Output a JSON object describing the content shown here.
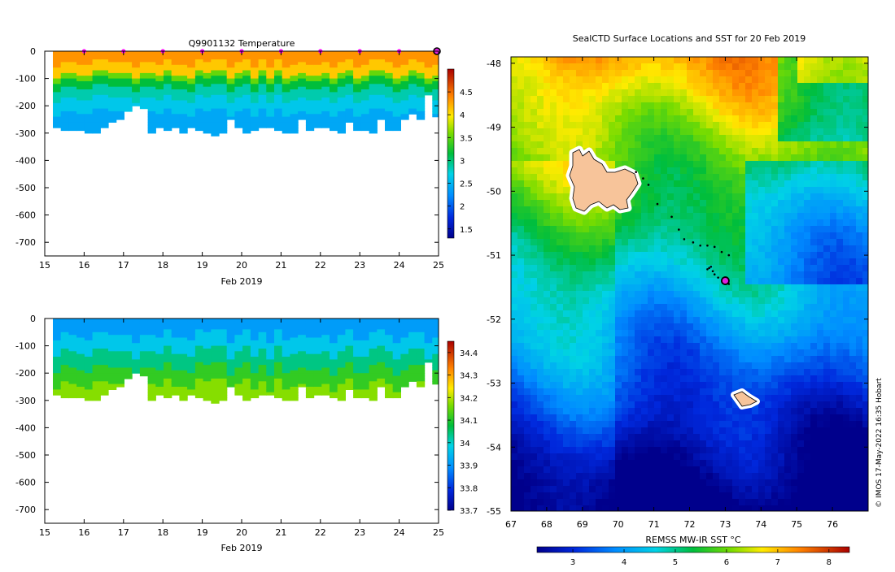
{
  "chart_data": [
    {
      "type": "heatmap",
      "title": "Q9901132  Temperature",
      "xlabel": "Feb 2019",
      "ylabel": "",
      "x_ticks": [
        15,
        16,
        17,
        18,
        19,
        20,
        21,
        22,
        23,
        24,
        25
      ],
      "y_ticks": [
        0,
        -100,
        -200,
        -300,
        -400,
        -500,
        -600,
        -700
      ],
      "xlim": [
        15,
        25
      ],
      "ylim": [
        -750,
        0
      ],
      "colorbar": {
        "ticks": [
          1.5,
          2,
          2.5,
          3,
          3.5,
          4,
          4.5
        ],
        "range": [
          1.3,
          5.0
        ]
      },
      "profile_max_depth": [
        280,
        285,
        290,
        290,
        295,
        300,
        275,
        260,
        245,
        220,
        200,
        210,
        300,
        280,
        285,
        280,
        295,
        275,
        285,
        300,
        310,
        300,
        250,
        280,
        300,
        285,
        280,
        280,
        290,
        300,
        295,
        250,
        285,
        275,
        280,
        285,
        295,
        260,
        285,
        285,
        300,
        250,
        290,
        285,
        250,
        230,
        245,
        155,
        240
      ],
      "markers": [
        16,
        17,
        18,
        19,
        20,
        21,
        22,
        23,
        24,
        25
      ]
    },
    {
      "type": "heatmap",
      "title": "",
      "xlabel": "Feb 2019",
      "ylabel": "",
      "x_ticks": [
        15,
        16,
        17,
        18,
        19,
        20,
        21,
        22,
        23,
        24,
        25
      ],
      "y_ticks": [
        0,
        -100,
        -200,
        -300,
        -400,
        -500,
        -600,
        -700
      ],
      "xlim": [
        15,
        25
      ],
      "ylim": [
        -750,
        0
      ],
      "colorbar": {
        "ticks": [
          33.7,
          33.8,
          33.9,
          34,
          34.1,
          34.2,
          34.3,
          34.4
        ],
        "range": [
          33.7,
          34.45
        ]
      },
      "profile_max_depth": [
        280,
        285,
        290,
        290,
        295,
        300,
        275,
        260,
        245,
        220,
        200,
        210,
        300,
        280,
        285,
        280,
        295,
        275,
        285,
        300,
        310,
        300,
        250,
        280,
        300,
        285,
        280,
        280,
        290,
        300,
        295,
        250,
        285,
        275,
        280,
        285,
        295,
        260,
        285,
        285,
        300,
        250,
        290,
        285,
        250,
        230,
        245,
        155,
        240
      ]
    },
    {
      "type": "heatmap",
      "title": "SealCTD Surface Locations and SST for 20 Feb 2019",
      "xlabel": "",
      "ylabel": "",
      "x_ticks": [
        67,
        68,
        69,
        70,
        71,
        72,
        73,
        74,
        75,
        76
      ],
      "y_ticks": [
        -48,
        -49,
        -50,
        -51,
        -52,
        -53,
        -54,
        -55
      ],
      "xlim": [
        67,
        77
      ],
      "ylim": [
        -55,
        -47.9
      ],
      "colorbar": {
        "label": "REMSS MW-IR SST °C",
        "ticks": [
          3,
          4,
          5,
          6,
          7,
          8
        ],
        "range": [
          2.3,
          8.4
        ]
      },
      "track": [
        [
          70.5,
          -49.7
        ],
        [
          70.7,
          -49.8
        ],
        [
          70.85,
          -49.9
        ],
        [
          71.1,
          -50.2
        ],
        [
          71.5,
          -50.4
        ],
        [
          71.7,
          -50.6
        ],
        [
          71.85,
          -50.75
        ],
        [
          72.1,
          -50.8
        ],
        [
          72.3,
          -50.85
        ],
        [
          72.5,
          -50.85
        ],
        [
          72.7,
          -50.87
        ],
        [
          72.9,
          -50.95
        ],
        [
          73.1,
          -51.0
        ],
        [
          72.55,
          -51.2
        ],
        [
          72.6,
          -51.18
        ],
        [
          72.65,
          -51.25
        ],
        [
          72.5,
          -51.22
        ],
        [
          72.7,
          -51.3
        ],
        [
          72.8,
          -51.35
        ],
        [
          73.05,
          -51.38
        ],
        [
          72.95,
          -51.42
        ],
        [
          73.1,
          -51.45
        ]
      ],
      "last_position": [
        73.0,
        -51.4
      ],
      "credit": "© IMOS 17-May-2022 16:35 Hobart"
    }
  ]
}
